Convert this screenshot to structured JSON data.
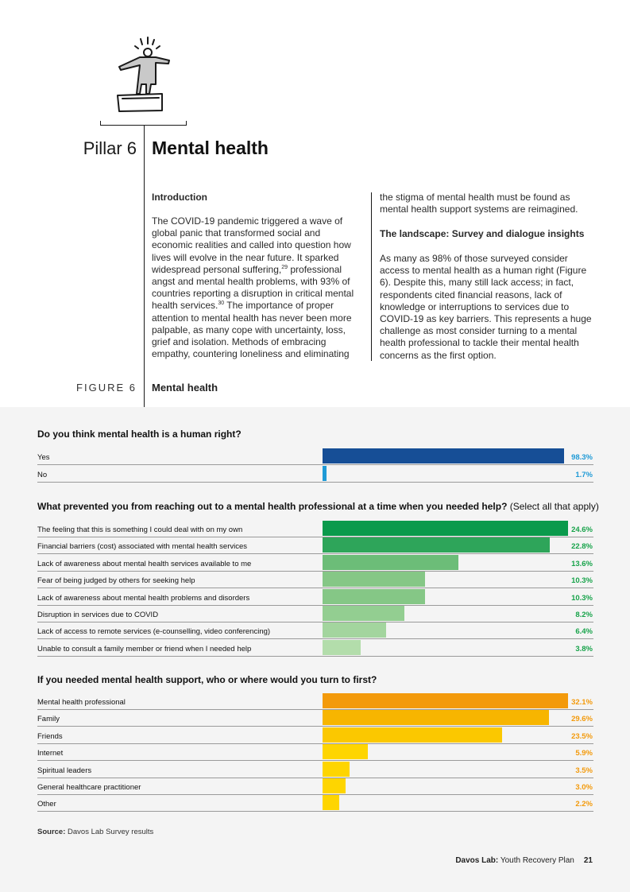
{
  "header": {
    "pillar_label": "Pillar 6",
    "pillar_title": "Mental health",
    "illustration_icon": "person-on-podium-icon"
  },
  "intro": {
    "heading": "Introduction",
    "body_a": "The COVID-19 pandemic triggered a wave of global panic that transformed social and economic realities and called into question how lives will evolve in the near future. It sparked widespread personal suffering,",
    "ref_29": "29",
    "body_b": " professional angst and mental health problems, with 93% of countries reporting a disruption in critical mental health services.",
    "ref_30": "30",
    "body_c": " The importance of proper attention to mental health has never been more palpable, as many cope with uncertainty, loss, grief and isolation. Methods of embracing empathy, countering loneliness and eliminating"
  },
  "column2": {
    "continuation": "the stigma of mental health must be found as mental health support systems are reimagined.",
    "landscape_heading": "The landscape: Survey and dialogue insights",
    "landscape_body": "As many as 98% of those surveyed consider access to mental health as a human right (Figure 6). Despite this, many still lack access; in fact, respondents cited financial reasons, lack of knowledge or interruptions to services due to COVID-19 as key barriers. This represents a huge challenge as most consider turning to a mental health professional to tackle their mental health concerns as the first option."
  },
  "figure": {
    "label": "FIGURE 6",
    "title": "Mental health"
  },
  "chart_data": [
    {
      "type": "bar",
      "title": "Do you think mental health is a human right?",
      "categories": [
        "Yes",
        "No"
      ],
      "values": [
        98.3,
        1.7
      ],
      "value_labels": [
        "98.3%",
        "1.7%"
      ],
      "xlim": [
        0,
        100
      ],
      "bar_colors": [
        "#164e96",
        "#1f9ad6"
      ],
      "value_colors": [
        "#1f9ad6",
        "#1f9ad6"
      ]
    },
    {
      "type": "bar",
      "title": "What prevented you from reaching out to a mental health professional at a time when you needed help?",
      "title_note": "(Select all that apply)",
      "categories": [
        "The feeling that this is something I could deal with on my own",
        "Financial barriers (cost) associated with mental health services",
        "Lack of awareness about mental health services available to me",
        "Fear of being judged by others for seeking help",
        "Lack of awareness about mental health problems and disorders",
        "Disruption in services due to COVID",
        "Lack of access to remote services (e-counselling, video conferencing)",
        "Unable to consult a family member or friend when I needed help"
      ],
      "values": [
        24.6,
        22.8,
        13.6,
        10.3,
        10.3,
        8.2,
        6.4,
        3.8
      ],
      "value_labels": [
        "24.6%",
        "22.8%",
        "13.6%",
        "10.3%",
        "10.3%",
        "8.2%",
        "6.4%",
        "3.8%"
      ],
      "xlim": [
        0,
        24.6
      ],
      "bar_colors": [
        "#0a9a4c",
        "#2ea55a",
        "#6cbd78",
        "#85c786",
        "#85c786",
        "#93ce91",
        "#a3d59e",
        "#b3ddab"
      ],
      "value_colors": [
        "#17a34a",
        "#17a34a",
        "#17a34a",
        "#17a34a",
        "#17a34a",
        "#17a34a",
        "#17a34a",
        "#17a34a"
      ]
    },
    {
      "type": "bar",
      "title": "If you needed mental health support, who or where would you turn to first?",
      "categories": [
        "Mental health professional",
        "Family",
        "Friends",
        "Internet",
        "Spiritual leaders",
        "General healthcare practitioner",
        "Other"
      ],
      "values": [
        32.1,
        29.6,
        23.5,
        5.9,
        3.5,
        3.0,
        2.2
      ],
      "value_labels": [
        "32.1%",
        "29.6%",
        "23.5%",
        "5.9%",
        "3.5%",
        "3.0%",
        "2.2%"
      ],
      "xlim": [
        0,
        32.1
      ],
      "bar_colors": [
        "#f39a0b",
        "#f7b500",
        "#fbc800",
        "#fed500",
        "#fed500",
        "#fed500",
        "#fed500"
      ],
      "value_colors": [
        "#f39a0b",
        "#f39a0b",
        "#f39a0b",
        "#f39a0b",
        "#f39a0b",
        "#f39a0b",
        "#f39a0b"
      ]
    }
  ],
  "source": {
    "label": "Source:",
    "text": "Davos Lab Survey results"
  },
  "footer": {
    "brand": "Davos Lab:",
    "title": "Youth Recovery Plan",
    "page": "21"
  }
}
